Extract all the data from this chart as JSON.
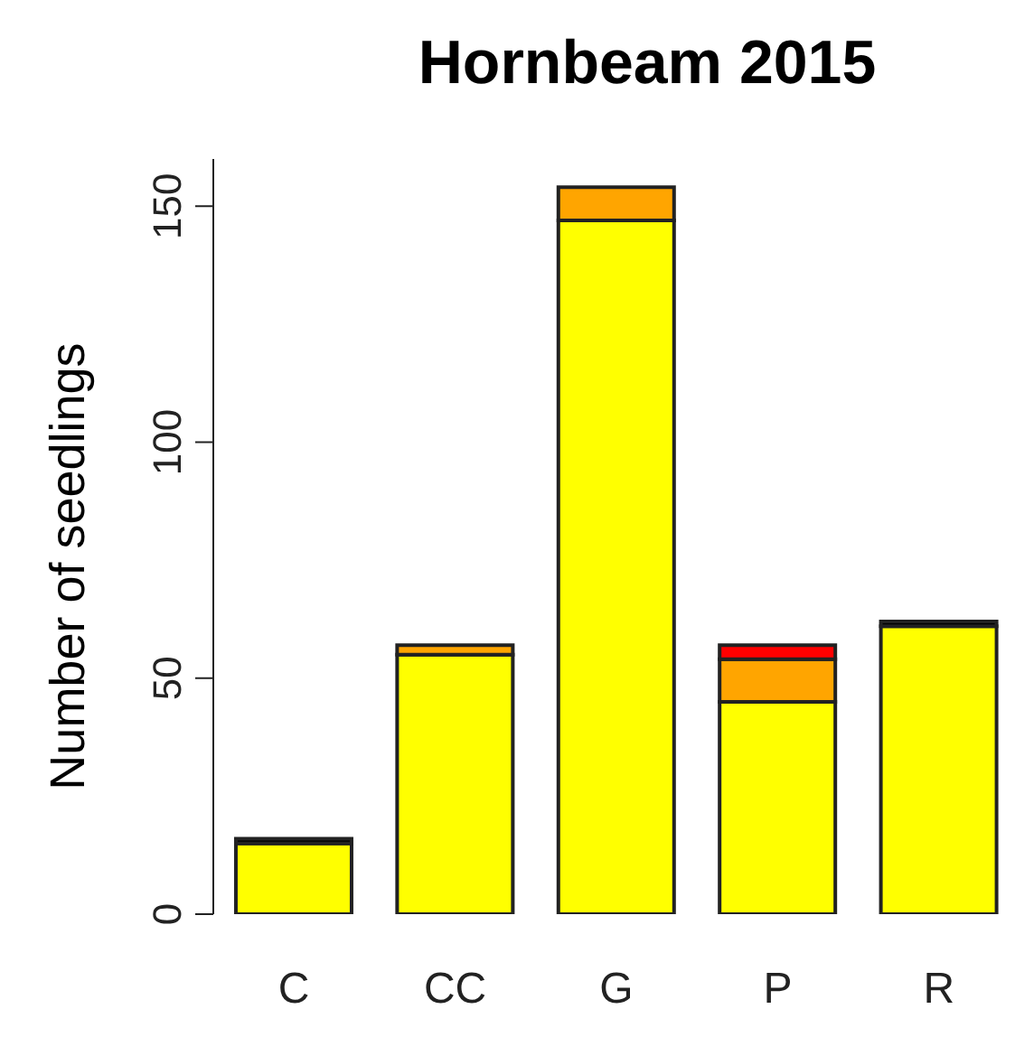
{
  "chart_data": {
    "type": "bar",
    "title": "Hornbeam 2015",
    "ylabel": "Number of seedlings",
    "categories": [
      "C",
      "CC",
      "G",
      "P",
      "R"
    ],
    "stacked": true,
    "series": [
      {
        "color": "#ffff00",
        "values": [
          15,
          55,
          147,
          45,
          61
        ]
      },
      {
        "color": "#ffa500",
        "values": [
          0,
          2,
          7,
          9,
          0
        ]
      },
      {
        "color": "#ff0000",
        "values": [
          0,
          0,
          0,
          3,
          0
        ]
      },
      {
        "color": "#000000",
        "values": [
          1,
          0,
          0,
          0,
          1
        ]
      }
    ],
    "ylim": [
      0,
      160
    ],
    "yticks": [
      0,
      50,
      100,
      150
    ],
    "grid": false,
    "legend": false
  }
}
